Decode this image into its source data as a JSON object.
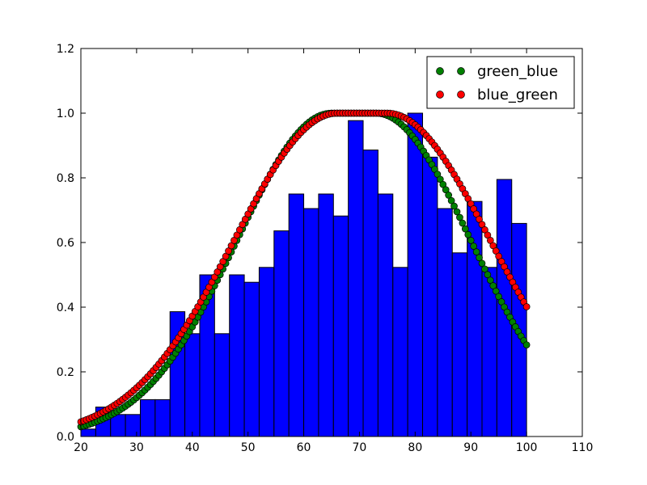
{
  "chart_data": {
    "type": "bar",
    "title": "",
    "xlabel": "",
    "ylabel": "",
    "xlim": [
      20,
      110
    ],
    "ylim": [
      0,
      1.2
    ],
    "x_ticks": [
      20,
      30,
      40,
      50,
      60,
      70,
      80,
      90,
      100,
      110
    ],
    "y_ticks": [
      0.0,
      0.2,
      0.4,
      0.6,
      0.8,
      1.0,
      1.2
    ],
    "x_tick_labels": [
      "20",
      "30",
      "40",
      "50",
      "60",
      "70",
      "80",
      "90",
      "100",
      "110"
    ],
    "y_tick_labels": [
      "0.0",
      "0.2",
      "0.4",
      "0.6",
      "0.8",
      "1.0",
      "1.2"
    ],
    "grid": false,
    "legend_position": "top-right",
    "histogram": {
      "color": "#0000ff",
      "edge_color": "#000000",
      "bin_edges": [
        20,
        22.6667,
        25.3333,
        28,
        30.6667,
        33.3333,
        36,
        38.6667,
        41.3333,
        44,
        46.6667,
        49.3333,
        52,
        54.6667,
        57.3333,
        60,
        62.6667,
        65.3333,
        68,
        70.6667,
        73.3333,
        76,
        78.6667,
        81.3333,
        84,
        86.6667,
        89.3333,
        92,
        94.6667,
        97.3333,
        100
      ],
      "values": [
        0.023,
        0.091,
        0.068,
        0.068,
        0.114,
        0.114,
        0.386,
        0.318,
        0.5,
        0.318,
        0.5,
        0.477,
        0.523,
        0.636,
        0.75,
        0.705,
        0.75,
        0.682,
        0.977,
        0.886,
        0.75,
        0.523,
        1.0,
        0.864,
        0.705,
        0.568,
        0.727,
        0.523,
        0.795,
        0.659
      ]
    },
    "series": [
      {
        "name": "green_blue",
        "color": "#008000",
        "type": "gaussian",
        "x_start": 20,
        "x_end": 100,
        "mu": 69,
        "sigma": 17,
        "plateau": 4,
        "marker": "circle"
      },
      {
        "name": "blue_green",
        "color": "#ff0000",
        "type": "gaussian",
        "x_start": 20,
        "x_end": 100,
        "mu": 70.5,
        "sigma": 18.5,
        "plateau": 4.5,
        "marker": "circle"
      }
    ]
  }
}
